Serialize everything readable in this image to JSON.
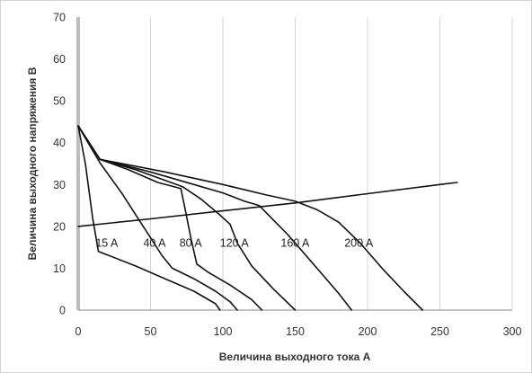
{
  "chart_data": {
    "type": "line",
    "title": "",
    "xlabel": "Величина выходного тока А",
    "ylabel": "Величина выходного напряжения В",
    "xlim": [
      0,
      300
    ],
    "ylim": [
      0,
      70
    ],
    "x_ticks": [
      "0",
      "50",
      "100",
      "150",
      "200",
      "250",
      "300"
    ],
    "y_ticks": [
      "0",
      "10",
      "20",
      "30",
      "40",
      "50",
      "60",
      "70"
    ],
    "grid": "vertical",
    "legend": "none",
    "line_color": "#111111",
    "series": [
      {
        "name": "15 A",
        "points": [
          [
            0,
            44
          ],
          [
            5,
            35
          ],
          [
            10,
            22
          ],
          [
            14,
            14
          ],
          [
            20,
            13.2
          ],
          [
            40,
            10.5
          ],
          [
            60,
            7.5
          ],
          [
            80,
            4.5
          ],
          [
            95,
            1.5
          ],
          [
            98,
            0
          ]
        ]
      },
      {
        "name": "40 A",
        "points": [
          [
            0,
            44
          ],
          [
            15,
            35.2
          ],
          [
            30,
            28
          ],
          [
            45,
            20
          ],
          [
            58,
            13
          ],
          [
            65,
            10
          ],
          [
            80,
            7.5
          ],
          [
            95,
            4.5
          ],
          [
            105,
            2
          ],
          [
            110,
            0
          ]
        ]
      },
      {
        "name": "80 A",
        "points": [
          [
            0,
            44
          ],
          [
            15,
            36
          ],
          [
            35,
            33.5
          ],
          [
            55,
            30.5
          ],
          [
            66,
            29.5
          ],
          [
            71,
            29
          ],
          [
            74,
            24
          ],
          [
            78,
            17
          ],
          [
            82,
            11
          ],
          [
            90,
            9
          ],
          [
            105,
            6
          ],
          [
            120,
            2.5
          ],
          [
            127,
            0
          ]
        ]
      },
      {
        "name": "120 A",
        "points": [
          [
            0,
            44
          ],
          [
            15,
            36
          ],
          [
            40,
            33.5
          ],
          [
            60,
            31
          ],
          [
            72,
            29.5
          ],
          [
            85,
            26.5
          ],
          [
            97,
            23
          ],
          [
            105,
            20.5
          ],
          [
            110,
            16
          ],
          [
            120,
            10.5
          ],
          [
            135,
            5
          ],
          [
            150,
            0
          ]
        ]
      },
      {
        "name": "160 A",
        "points": [
          [
            0,
            44
          ],
          [
            15,
            36
          ],
          [
            50,
            33
          ],
          [
            80,
            30
          ],
          [
            100,
            28
          ],
          [
            115,
            26
          ],
          [
            125,
            25
          ],
          [
            135,
            21.5
          ],
          [
            145,
            18
          ],
          [
            155,
            14
          ],
          [
            165,
            10
          ],
          [
            180,
            4
          ],
          [
            189,
            0
          ]
        ]
      },
      {
        "name": "200 A",
        "points": [
          [
            0,
            44
          ],
          [
            15,
            36
          ],
          [
            60,
            33
          ],
          [
            100,
            30
          ],
          [
            130,
            27.5
          ],
          [
            150,
            26
          ],
          [
            165,
            24
          ],
          [
            180,
            21
          ],
          [
            195,
            16
          ],
          [
            210,
            10
          ],
          [
            225,
            4.5
          ],
          [
            238,
            0
          ]
        ]
      },
      {
        "name": "",
        "points": [
          [
            0,
            20
          ],
          [
            50,
            21.8
          ],
          [
            100,
            23.7
          ],
          [
            150,
            25.6
          ],
          [
            200,
            27.8
          ],
          [
            250,
            30
          ],
          [
            262,
            30.5
          ]
        ]
      }
    ],
    "curve_labels": [
      {
        "text": "15 A",
        "x": 12,
        "y": 16
      },
      {
        "text": "40 A",
        "x": 45,
        "y": 16
      },
      {
        "text": "80 A",
        "x": 70,
        "y": 16
      },
      {
        "text": "120 A",
        "x": 98,
        "y": 16
      },
      {
        "text": "160 A",
        "x": 140,
        "y": 16
      },
      {
        "text": "200 A",
        "x": 184,
        "y": 16
      }
    ]
  }
}
